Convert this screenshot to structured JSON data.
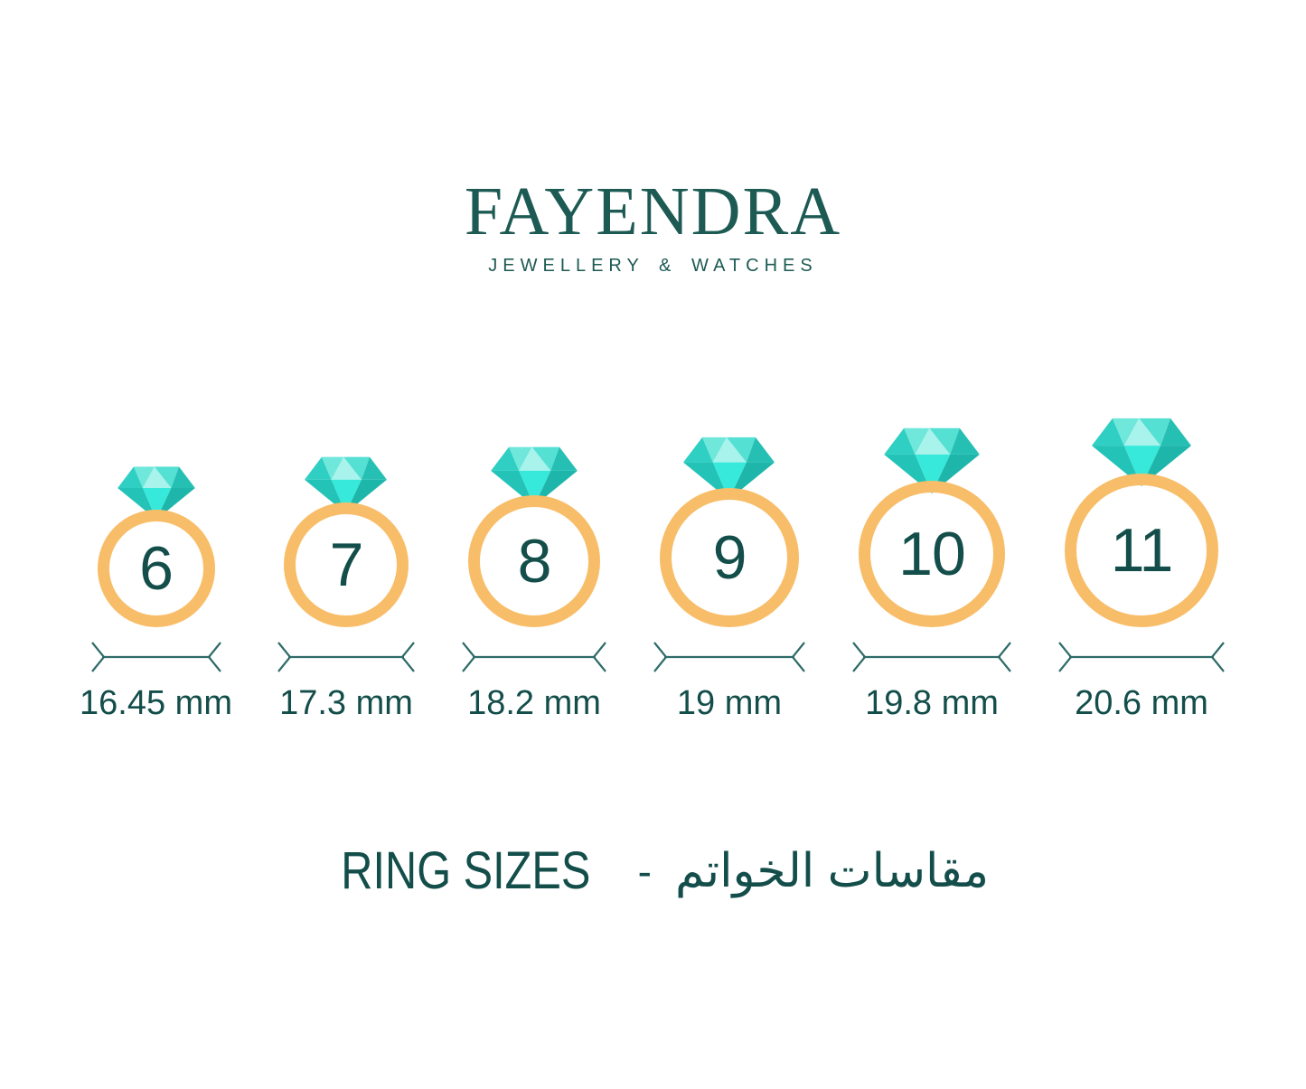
{
  "brand": {
    "name": "FAYENDRA",
    "tagline": "JEWELLERY & WATCHES"
  },
  "rings": [
    {
      "size": "6",
      "diameter": "16.45 mm"
    },
    {
      "size": "7",
      "diameter": "17.3 mm"
    },
    {
      "size": "8",
      "diameter": "18.2 mm"
    },
    {
      "size": "9",
      "diameter": "19 mm"
    },
    {
      "size": "10",
      "diameter": "19.8 mm"
    },
    {
      "size": "11",
      "diameter": "20.6 mm"
    }
  ],
  "footer": {
    "title_en": "RING SIZES",
    "separator": "-",
    "title_ar": "مقاسات الخواتم"
  },
  "icons": {
    "diamond": "diamond-icon",
    "ring_band": "ring-band-icon",
    "dimension_arrow": "width-arrow-icon"
  },
  "colors": {
    "background": "#FFFFFF",
    "band": "#F8BD68",
    "text": "#134E4A",
    "logo_text": "#1C5A53",
    "dimension_line": "#2E6B68",
    "diamond_facets": {
      "crown_left": "#2FCFC3",
      "crown_center_left": "#6FE7DB",
      "crown_center": "#A8F3EB",
      "crown_center_right": "#55E0D4",
      "crown_right": "#26BFB4",
      "pavilion_left": "#23C3B7",
      "pavilion_center": "#36E9DA",
      "pavilion_right": "#1EB6AB"
    }
  }
}
